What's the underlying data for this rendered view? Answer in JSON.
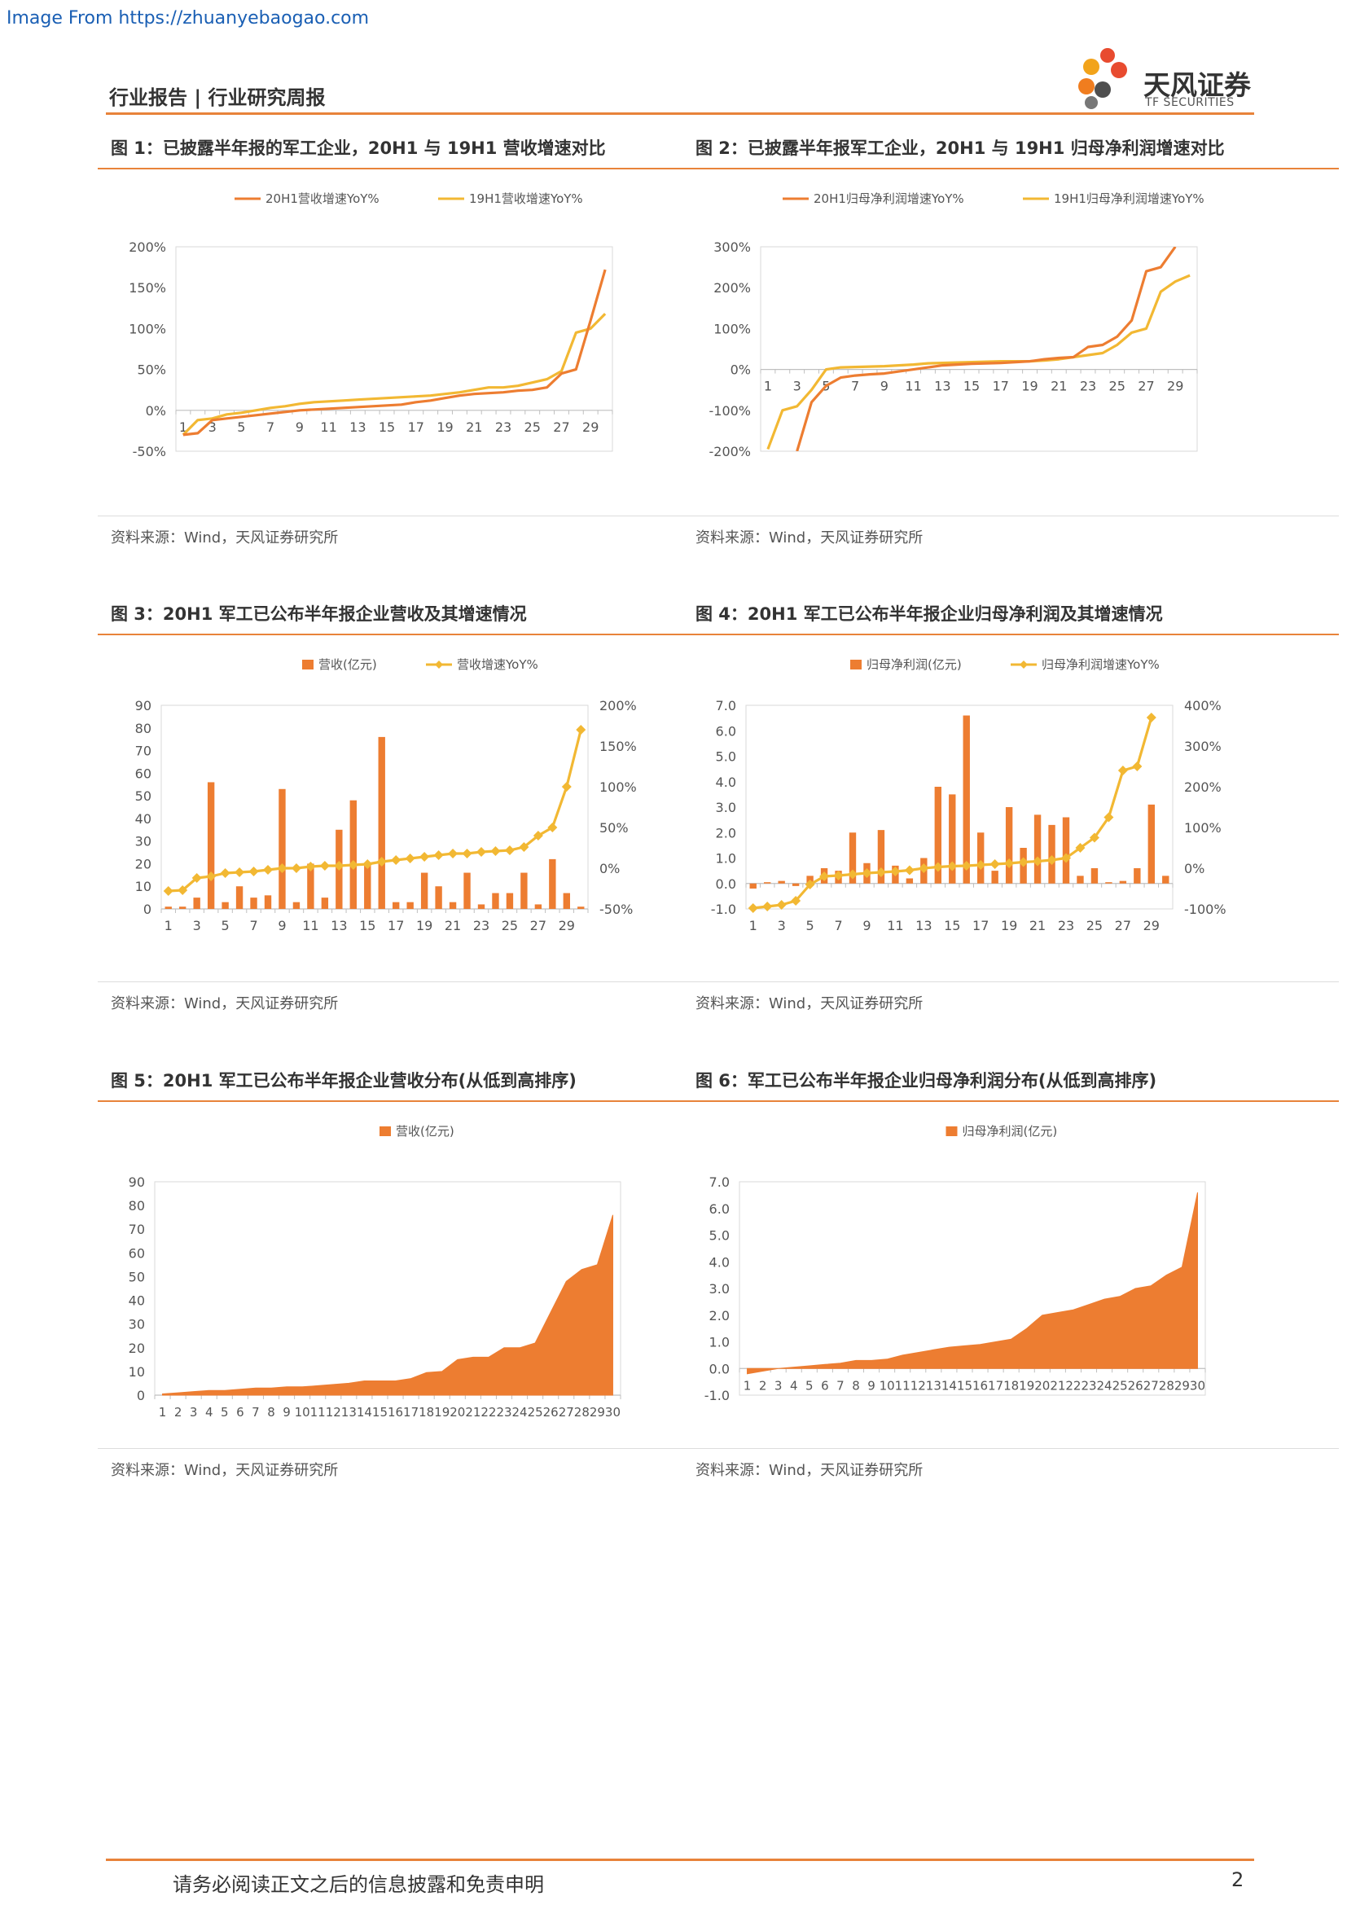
{
  "watermark": "Image From https://zhuanyebaogao.com",
  "header": {
    "title": "行业报告 | 行业研究周报"
  },
  "logo": {
    "name": "天风证券",
    "sub": "TF SECURITIES"
  },
  "colors": {
    "orange": "#ED7D31",
    "yellow": "#F2B833",
    "accent": "#e8833a"
  },
  "footer": {
    "text": "请务必阅读正文之后的信息披露和免责申明",
    "page": "2"
  },
  "figures": [
    {
      "title": "图 1：已披露半年报的军工企业，20H1 与 19H1 营收增速对比",
      "source": "资料来源：Wind，天风证券研究所"
    },
    {
      "title": "图 2：已披露半年报军工企业，20H1 与 19H1 归母净利润增速对比",
      "source": "资料来源：Wind，天风证券研究所"
    },
    {
      "title": "图 3：20H1 军工已公布半年报企业营收及其增速情况",
      "source": "资料来源：Wind，天风证券研究所"
    },
    {
      "title": "图 4：20H1 军工已公布半年报企业归母净利润及其增速情况",
      "source": "资料来源：Wind，天风证券研究所"
    },
    {
      "title": "图 5：20H1 军工已公布半年报企业营收分布(从低到高排序)",
      "source": "资料来源：Wind，天风证券研究所"
    },
    {
      "title": "图 6：军工已公布半年报企业归母净利润分布(从低到高排序)",
      "source": "资料来源：Wind，天风证券研究所"
    }
  ],
  "chart_data": [
    {
      "type": "line",
      "ylim": [
        -50,
        200
      ],
      "yticks": [
        "-50%",
        "0%",
        "50%",
        "100%",
        "150%",
        "200%"
      ],
      "x": [
        1,
        2,
        3,
        4,
        5,
        6,
        7,
        8,
        9,
        10,
        11,
        12,
        13,
        14,
        15,
        16,
        17,
        18,
        19,
        20,
        21,
        22,
        23,
        24,
        25,
        26,
        27,
        28,
        29,
        30
      ],
      "xticks": [
        "1",
        "3",
        "5",
        "7",
        "9",
        "11",
        "13",
        "15",
        "17",
        "19",
        "21",
        "23",
        "25",
        "27",
        "29"
      ],
      "series": [
        {
          "name": "20H1营收增速YoY%",
          "values": [
            -30,
            -28,
            -12,
            -10,
            -8,
            -6,
            -4,
            -2,
            0,
            1,
            2,
            3,
            4,
            5,
            6,
            7,
            10,
            12,
            15,
            18,
            20,
            21,
            22,
            24,
            25,
            28,
            45,
            50,
            110,
            172
          ]
        },
        {
          "name": "19H1营收增速YoY%",
          "values": [
            -30,
            -12,
            -10,
            -5,
            -3,
            0,
            3,
            5,
            8,
            10,
            11,
            12,
            13,
            14,
            15,
            16,
            17,
            18,
            20,
            22,
            25,
            28,
            28,
            30,
            34,
            38,
            48,
            95,
            100,
            118
          ]
        }
      ]
    },
    {
      "type": "line",
      "ylim": [
        -200,
        300
      ],
      "yticks": [
        "-200%",
        "-100%",
        "0%",
        "100%",
        "200%",
        "300%"
      ],
      "x": [
        1,
        2,
        3,
        4,
        5,
        6,
        7,
        8,
        9,
        10,
        11,
        12,
        13,
        14,
        15,
        16,
        17,
        18,
        19,
        20,
        21,
        22,
        23,
        24,
        25,
        26,
        27,
        28,
        29,
        30
      ],
      "xticks": [
        "1",
        "3",
        "5",
        "7",
        "9",
        "11",
        "13",
        "15",
        "17",
        "19",
        "21",
        "23",
        "25",
        "27",
        "29"
      ],
      "series": [
        {
          "name": "20H1归母净利润增速YoY%",
          "values": [
            null,
            null,
            -200,
            -80,
            -40,
            -20,
            -15,
            -12,
            -10,
            -5,
            0,
            5,
            10,
            12,
            14,
            15,
            16,
            18,
            20,
            25,
            28,
            30,
            55,
            60,
            80,
            120,
            240,
            250,
            300,
            null
          ]
        },
        {
          "name": "19H1归母净利润增速YoY%",
          "values": [
            -195,
            -100,
            -90,
            -50,
            0,
            5,
            6,
            7,
            8,
            10,
            12,
            15,
            16,
            17,
            18,
            19,
            20,
            20,
            20,
            22,
            25,
            30,
            35,
            40,
            60,
            90,
            100,
            190,
            215,
            230
          ]
        }
      ]
    },
    {
      "type": "bar",
      "categories": [
        1,
        2,
        3,
        4,
        5,
        6,
        7,
        8,
        9,
        10,
        11,
        12,
        13,
        14,
        15,
        16,
        17,
        18,
        19,
        20,
        21,
        22,
        23,
        24,
        25,
        26,
        27,
        28,
        29,
        30
      ],
      "xticks": [
        "1",
        "3",
        "5",
        "7",
        "9",
        "11",
        "13",
        "15",
        "17",
        "19",
        "21",
        "23",
        "25",
        "27",
        "29"
      ],
      "ylim": [
        0,
        90
      ],
      "yticks": [
        "0",
        "10",
        "20",
        "30",
        "40",
        "50",
        "60",
        "70",
        "80",
        "90"
      ],
      "y2lim": [
        -50,
        200
      ],
      "y2ticks": [
        "-50%",
        "0%",
        "50%",
        "100%",
        "150%",
        "200%"
      ],
      "series": [
        {
          "name": "营收(亿元)",
          "values": [
            1,
            1,
            5,
            56,
            3,
            10,
            5,
            6,
            53,
            3,
            20,
            5,
            35,
            48,
            20,
            76,
            3,
            3,
            16,
            10,
            3,
            16,
            2,
            7,
            7,
            16,
            2,
            22,
            7,
            1
          ]
        },
        {
          "name": "营收增速YoY%",
          "axis": "right",
          "values": [
            -28,
            -27,
            -12,
            -10,
            -6,
            -5,
            -4,
            -2,
            0,
            0,
            2,
            3,
            3,
            4,
            5,
            8,
            10,
            12,
            14,
            16,
            18,
            18,
            20,
            21,
            22,
            26,
            40,
            50,
            100,
            170
          ]
        }
      ]
    },
    {
      "type": "bar",
      "categories": [
        1,
        2,
        3,
        4,
        5,
        6,
        7,
        8,
        9,
        10,
        11,
        12,
        13,
        14,
        15,
        16,
        17,
        18,
        19,
        20,
        21,
        22,
        23,
        24,
        25,
        26,
        27,
        28,
        29,
        30
      ],
      "xticks": [
        "1",
        "3",
        "5",
        "7",
        "9",
        "11",
        "13",
        "15",
        "17",
        "19",
        "21",
        "23",
        "25",
        "27",
        "29"
      ],
      "ylim": [
        -1.0,
        7.0
      ],
      "yticks": [
        "-1.0",
        "0.0",
        "1.0",
        "2.0",
        "3.0",
        "4.0",
        "5.0",
        "6.0",
        "7.0"
      ],
      "y2lim": [
        -100,
        400
      ],
      "y2ticks": [
        "-100%",
        "0%",
        "100%",
        "200%",
        "300%",
        "400%"
      ],
      "series": [
        {
          "name": "归母净利润(亿元)",
          "values": [
            -0.2,
            0.05,
            0.1,
            -0.1,
            0.3,
            0.6,
            0.5,
            2.0,
            0.8,
            2.1,
            0.7,
            0.2,
            1.0,
            3.8,
            3.5,
            6.6,
            2.0,
            0.5,
            3.0,
            1.4,
            2.7,
            2.3,
            2.6,
            0.3,
            0.6,
            0.05,
            0.1,
            0.6,
            3.1,
            0.3
          ]
        },
        {
          "name": "归母净利润增速YoY%",
          "axis": "right",
          "values": [
            -98,
            -94,
            -90,
            -80,
            -40,
            -20,
            -18,
            -15,
            -12,
            -10,
            -8,
            -5,
            0,
            3,
            5,
            6,
            8,
            10,
            12,
            15,
            17,
            20,
            25,
            50,
            75,
            125,
            240,
            250,
            370,
            null
          ]
        }
      ]
    },
    {
      "type": "area",
      "categories": [
        "1",
        "2",
        "3",
        "4",
        "5",
        "6",
        "7",
        "8",
        "9",
        "10",
        "11",
        "12",
        "13",
        "14",
        "15",
        "16",
        "17",
        "18",
        "19",
        "20",
        "21",
        "22",
        "23",
        "24",
        "25",
        "26",
        "27",
        "28",
        "29",
        "30"
      ],
      "ylim": [
        0,
        90
      ],
      "yticks": [
        "0",
        "10",
        "20",
        "30",
        "40",
        "50",
        "60",
        "70",
        "80",
        "90"
      ],
      "series": [
        {
          "name": "营收(亿元)",
          "values": [
            0.5,
            1,
            1.5,
            2,
            2,
            2.5,
            3,
            3,
            3.5,
            3.5,
            4,
            4.5,
            5,
            6,
            6,
            6,
            7,
            9.5,
            10,
            15,
            16,
            16,
            20,
            20,
            22,
            35,
            48,
            53,
            55,
            76
          ]
        }
      ]
    },
    {
      "type": "area",
      "categories": [
        "1",
        "2",
        "3",
        "4",
        "5",
        "6",
        "7",
        "8",
        "9",
        "10",
        "11",
        "12",
        "13",
        "14",
        "15",
        "16",
        "17",
        "18",
        "19",
        "20",
        "21",
        "22",
        "23",
        "24",
        "25",
        "26",
        "27",
        "28",
        "29",
        "30"
      ],
      "ylim": [
        -1.0,
        7.0
      ],
      "yticks": [
        "-1.0",
        "0.0",
        "1.0",
        "2.0",
        "3.0",
        "4.0",
        "5.0",
        "6.0",
        "7.0"
      ],
      "series": [
        {
          "name": "归母净利润(亿元)",
          "values": [
            -0.2,
            -0.1,
            0,
            0.05,
            0.1,
            0.15,
            0.2,
            0.3,
            0.3,
            0.35,
            0.5,
            0.6,
            0.7,
            0.8,
            0.85,
            0.9,
            1.0,
            1.1,
            1.5,
            2.0,
            2.1,
            2.2,
            2.4,
            2.6,
            2.7,
            3.0,
            3.1,
            3.5,
            3.8,
            6.6
          ]
        }
      ]
    }
  ]
}
